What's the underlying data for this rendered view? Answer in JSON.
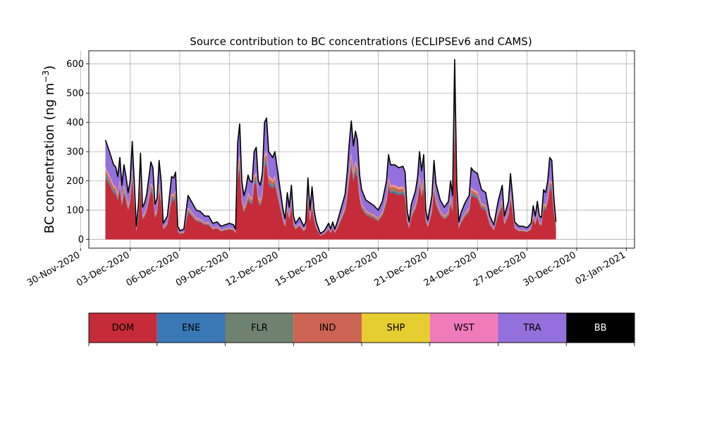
{
  "chart_data": {
    "type": "area",
    "stacked": true,
    "title": "Source contribution to BC concentrations (ECLIPSEv6 and CAMS)",
    "ylabel_text": "BC concentration (ng m",
    "ylabel_sup": "−3",
    "ylabel_close": ")",
    "xlabel": "",
    "grid": true,
    "legend": "bottom",
    "ylim": [
      -30,
      645
    ],
    "xlim": [
      "2020-11-30T12:00",
      "2021-01-02T12:00"
    ],
    "yticks": [
      0,
      100,
      200,
      300,
      400,
      500,
      600
    ],
    "xticks": [
      {
        "date": "2020-11-30",
        "label": "30-Nov-2020"
      },
      {
        "date": "2020-12-03",
        "label": "03-Dec-2020"
      },
      {
        "date": "2020-12-06",
        "label": "06-Dec-2020"
      },
      {
        "date": "2020-12-09",
        "label": "09-Dec-2020"
      },
      {
        "date": "2020-12-12",
        "label": "12-Dec-2020"
      },
      {
        "date": "2020-12-15",
        "label": "15-Dec-2020"
      },
      {
        "date": "2020-12-18",
        "label": "18-Dec-2020"
      },
      {
        "date": "2020-12-21",
        "label": "21-Dec-2020"
      },
      {
        "date": "2020-12-24",
        "label": "24-Dec-2020"
      },
      {
        "date": "2020-12-27",
        "label": "27-Dec-2020"
      },
      {
        "date": "2020-12-30",
        "label": "30-Dec-2020"
      },
      {
        "date": "2021-01-02",
        "label": "02-Jan-2021"
      }
    ],
    "total": {
      "name": "BB",
      "color": "#000000",
      "points": [
        [
          "2020-12-01T12:00",
          340
        ],
        [
          "2020-12-01T18:00",
          300
        ],
        [
          "2020-12-02T00:00",
          255
        ],
        [
          "2020-12-02T03:00",
          248
        ],
        [
          "2020-12-02T06:00",
          215
        ],
        [
          "2020-12-02T09:00",
          280
        ],
        [
          "2020-12-02T12:00",
          185
        ],
        [
          "2020-12-02T15:00",
          255
        ],
        [
          "2020-12-02T18:00",
          215
        ],
        [
          "2020-12-02T21:00",
          160
        ],
        [
          "2020-12-03T00:00",
          200
        ],
        [
          "2020-12-03T03:00",
          335
        ],
        [
          "2020-12-03T06:00",
          195
        ],
        [
          "2020-12-03T09:00",
          45
        ],
        [
          "2020-12-03T12:00",
          120
        ],
        [
          "2020-12-03T15:00",
          295
        ],
        [
          "2020-12-03T18:00",
          110
        ],
        [
          "2020-12-03T21:00",
          125
        ],
        [
          "2020-12-04T00:00",
          155
        ],
        [
          "2020-12-04T06:00",
          265
        ],
        [
          "2020-12-04T09:00",
          245
        ],
        [
          "2020-12-04T12:00",
          120
        ],
        [
          "2020-12-04T15:00",
          140
        ],
        [
          "2020-12-04T18:00",
          270
        ],
        [
          "2020-12-04T21:00",
          200
        ],
        [
          "2020-12-05T00:00",
          55
        ],
        [
          "2020-12-05T06:00",
          80
        ],
        [
          "2020-12-05T12:00",
          215
        ],
        [
          "2020-12-05T15:00",
          210
        ],
        [
          "2020-12-05T18:00",
          230
        ],
        [
          "2020-12-05T21:00",
          45
        ],
        [
          "2020-12-06T00:00",
          30
        ],
        [
          "2020-12-06T06:00",
          35
        ],
        [
          "2020-12-06T12:00",
          150
        ],
        [
          "2020-12-06T18:00",
          125
        ],
        [
          "2020-12-07T00:00",
          100
        ],
        [
          "2020-12-07T06:00",
          95
        ],
        [
          "2020-12-07T12:00",
          80
        ],
        [
          "2020-12-07T18:00",
          80
        ],
        [
          "2020-12-08T00:00",
          55
        ],
        [
          "2020-12-08T06:00",
          60
        ],
        [
          "2020-12-08T12:00",
          45
        ],
        [
          "2020-12-08T18:00",
          50
        ],
        [
          "2020-12-09T00:00",
          55
        ],
        [
          "2020-12-09T06:00",
          50
        ],
        [
          "2020-12-09T09:00",
          35
        ],
        [
          "2020-12-09T12:00",
          330
        ],
        [
          "2020-12-09T15:00",
          395
        ],
        [
          "2020-12-09T18:00",
          200
        ],
        [
          "2020-12-09T21:00",
          150
        ],
        [
          "2020-12-10T00:00",
          175
        ],
        [
          "2020-12-10T03:00",
          220
        ],
        [
          "2020-12-10T06:00",
          200
        ],
        [
          "2020-12-10T09:00",
          195
        ],
        [
          "2020-12-10T12:00",
          300
        ],
        [
          "2020-12-10T15:00",
          315
        ],
        [
          "2020-12-10T18:00",
          200
        ],
        [
          "2020-12-10T21:00",
          185
        ],
        [
          "2020-12-11T00:00",
          230
        ],
        [
          "2020-12-11T03:00",
          400
        ],
        [
          "2020-12-11T06:00",
          415
        ],
        [
          "2020-12-11T09:00",
          300
        ],
        [
          "2020-12-11T12:00",
          290
        ],
        [
          "2020-12-11T15:00",
          280
        ],
        [
          "2020-12-11T18:00",
          300
        ],
        [
          "2020-12-12T00:00",
          200
        ],
        [
          "2020-12-12T06:00",
          100
        ],
        [
          "2020-12-12T09:00",
          70
        ],
        [
          "2020-12-12T12:00",
          160
        ],
        [
          "2020-12-12T15:00",
          110
        ],
        [
          "2020-12-12T18:00",
          185
        ],
        [
          "2020-12-12T21:00",
          80
        ],
        [
          "2020-12-13T00:00",
          55
        ],
        [
          "2020-12-13T06:00",
          75
        ],
        [
          "2020-12-13T12:00",
          45
        ],
        [
          "2020-12-13T15:00",
          60
        ],
        [
          "2020-12-13T18:00",
          210
        ],
        [
          "2020-12-13T21:00",
          100
        ],
        [
          "2020-12-14T00:00",
          180
        ],
        [
          "2020-12-14T03:00",
          100
        ],
        [
          "2020-12-14T06:00",
          60
        ],
        [
          "2020-12-14T12:00",
          20
        ],
        [
          "2020-12-14T18:00",
          30
        ],
        [
          "2020-12-15T00:00",
          55
        ],
        [
          "2020-12-15T03:00",
          35
        ],
        [
          "2020-12-15T06:00",
          60
        ],
        [
          "2020-12-15T09:00",
          35
        ],
        [
          "2020-12-15T12:00",
          55
        ],
        [
          "2020-12-15T18:00",
          105
        ],
        [
          "2020-12-16T00:00",
          155
        ],
        [
          "2020-12-16T03:00",
          230
        ],
        [
          "2020-12-16T06:00",
          330
        ],
        [
          "2020-12-16T09:00",
          405
        ],
        [
          "2020-12-16T12:00",
          320
        ],
        [
          "2020-12-16T15:00",
          370
        ],
        [
          "2020-12-16T18:00",
          340
        ],
        [
          "2020-12-16T21:00",
          220
        ],
        [
          "2020-12-17T00:00",
          170
        ],
        [
          "2020-12-17T06:00",
          135
        ],
        [
          "2020-12-17T12:00",
          125
        ],
        [
          "2020-12-17T18:00",
          115
        ],
        [
          "2020-12-18T00:00",
          100
        ],
        [
          "2020-12-18T06:00",
          130
        ],
        [
          "2020-12-18T12:00",
          200
        ],
        [
          "2020-12-18T15:00",
          290
        ],
        [
          "2020-12-18T18:00",
          255
        ],
        [
          "2020-12-19T00:00",
          255
        ],
        [
          "2020-12-19T06:00",
          245
        ],
        [
          "2020-12-19T12:00",
          250
        ],
        [
          "2020-12-19T15:00",
          230
        ],
        [
          "2020-12-19T18:00",
          100
        ],
        [
          "2020-12-19T21:00",
          60
        ],
        [
          "2020-12-20T00:00",
          120
        ],
        [
          "2020-12-20T06:00",
          165
        ],
        [
          "2020-12-20T09:00",
          210
        ],
        [
          "2020-12-20T12:00",
          300
        ],
        [
          "2020-12-20T15:00",
          235
        ],
        [
          "2020-12-20T18:00",
          290
        ],
        [
          "2020-12-20T21:00",
          100
        ],
        [
          "2020-12-21T00:00",
          65
        ],
        [
          "2020-12-21T06:00",
          150
        ],
        [
          "2020-12-21T09:00",
          270
        ],
        [
          "2020-12-21T12:00",
          190
        ],
        [
          "2020-12-21T18:00",
          135
        ],
        [
          "2020-12-22T00:00",
          110
        ],
        [
          "2020-12-22T06:00",
          130
        ],
        [
          "2020-12-22T09:00",
          200
        ],
        [
          "2020-12-22T12:00",
          150
        ],
        [
          "2020-12-22T15:00",
          615
        ],
        [
          "2020-12-22T18:00",
          190
        ],
        [
          "2020-12-22T21:00",
          60
        ],
        [
          "2020-12-23T00:00",
          90
        ],
        [
          "2020-12-23T06:00",
          125
        ],
        [
          "2020-12-23T12:00",
          150
        ],
        [
          "2020-12-23T15:00",
          245
        ],
        [
          "2020-12-23T18:00",
          235
        ],
        [
          "2020-12-24T00:00",
          225
        ],
        [
          "2020-12-24T06:00",
          170
        ],
        [
          "2020-12-24T12:00",
          160
        ],
        [
          "2020-12-24T18:00",
          80
        ],
        [
          "2020-12-25T00:00",
          50
        ],
        [
          "2020-12-25T06:00",
          130
        ],
        [
          "2020-12-25T12:00",
          185
        ],
        [
          "2020-12-25T15:00",
          80
        ],
        [
          "2020-12-25T21:00",
          130
        ],
        [
          "2020-12-26T00:00",
          225
        ],
        [
          "2020-12-26T03:00",
          150
        ],
        [
          "2020-12-26T06:00",
          60
        ],
        [
          "2020-12-26T12:00",
          45
        ],
        [
          "2020-12-26T18:00",
          45
        ],
        [
          "2020-12-27T00:00",
          40
        ],
        [
          "2020-12-27T06:00",
          55
        ],
        [
          "2020-12-27T09:00",
          115
        ],
        [
          "2020-12-27T12:00",
          80
        ],
        [
          "2020-12-27T15:00",
          130
        ],
        [
          "2020-12-27T18:00",
          80
        ],
        [
          "2020-12-27T21:00",
          75
        ],
        [
          "2020-12-28T00:00",
          170
        ],
        [
          "2020-12-28T03:00",
          160
        ],
        [
          "2020-12-28T06:00",
          200
        ],
        [
          "2020-12-28T09:00",
          280
        ],
        [
          "2020-12-28T12:00",
          270
        ],
        [
          "2020-12-28T15:00",
          140
        ],
        [
          "2020-12-28T18:00",
          60
        ]
      ]
    },
    "series": [
      {
        "name": "DOM",
        "color": "#c52b38",
        "fraction": 0.62
      },
      {
        "name": "ENE",
        "color": "#3a78b5",
        "fraction": 0.02
      },
      {
        "name": "FLR",
        "color": "#6f816f",
        "fraction": 0.02
      },
      {
        "name": "IND",
        "color": "#cc6454",
        "fraction": 0.04
      },
      {
        "name": "SHP",
        "color": "#e6cd30",
        "fraction": 0.01
      },
      {
        "name": "WST",
        "color": "#f07bba",
        "fraction": 0.02
      },
      {
        "name": "TRA",
        "color": "#9370db",
        "fraction": 0.27
      },
      {
        "name": "BB",
        "color": "#000000",
        "fraction": 0.0
      }
    ],
    "legend_entries": [
      {
        "label": "DOM",
        "color": "#c52b38",
        "text_color": "#000000"
      },
      {
        "label": "ENE",
        "color": "#3a78b5",
        "text_color": "#000000"
      },
      {
        "label": "FLR",
        "color": "#6f816f",
        "text_color": "#000000"
      },
      {
        "label": "IND",
        "color": "#cc6454",
        "text_color": "#000000"
      },
      {
        "label": "SHP",
        "color": "#e6cd30",
        "text_color": "#000000"
      },
      {
        "label": "WST",
        "color": "#f07bba",
        "text_color": "#000000"
      },
      {
        "label": "TRA",
        "color": "#9370db",
        "text_color": "#000000"
      },
      {
        "label": "BB",
        "color": "#000000",
        "text_color": "#ffffff"
      }
    ]
  }
}
